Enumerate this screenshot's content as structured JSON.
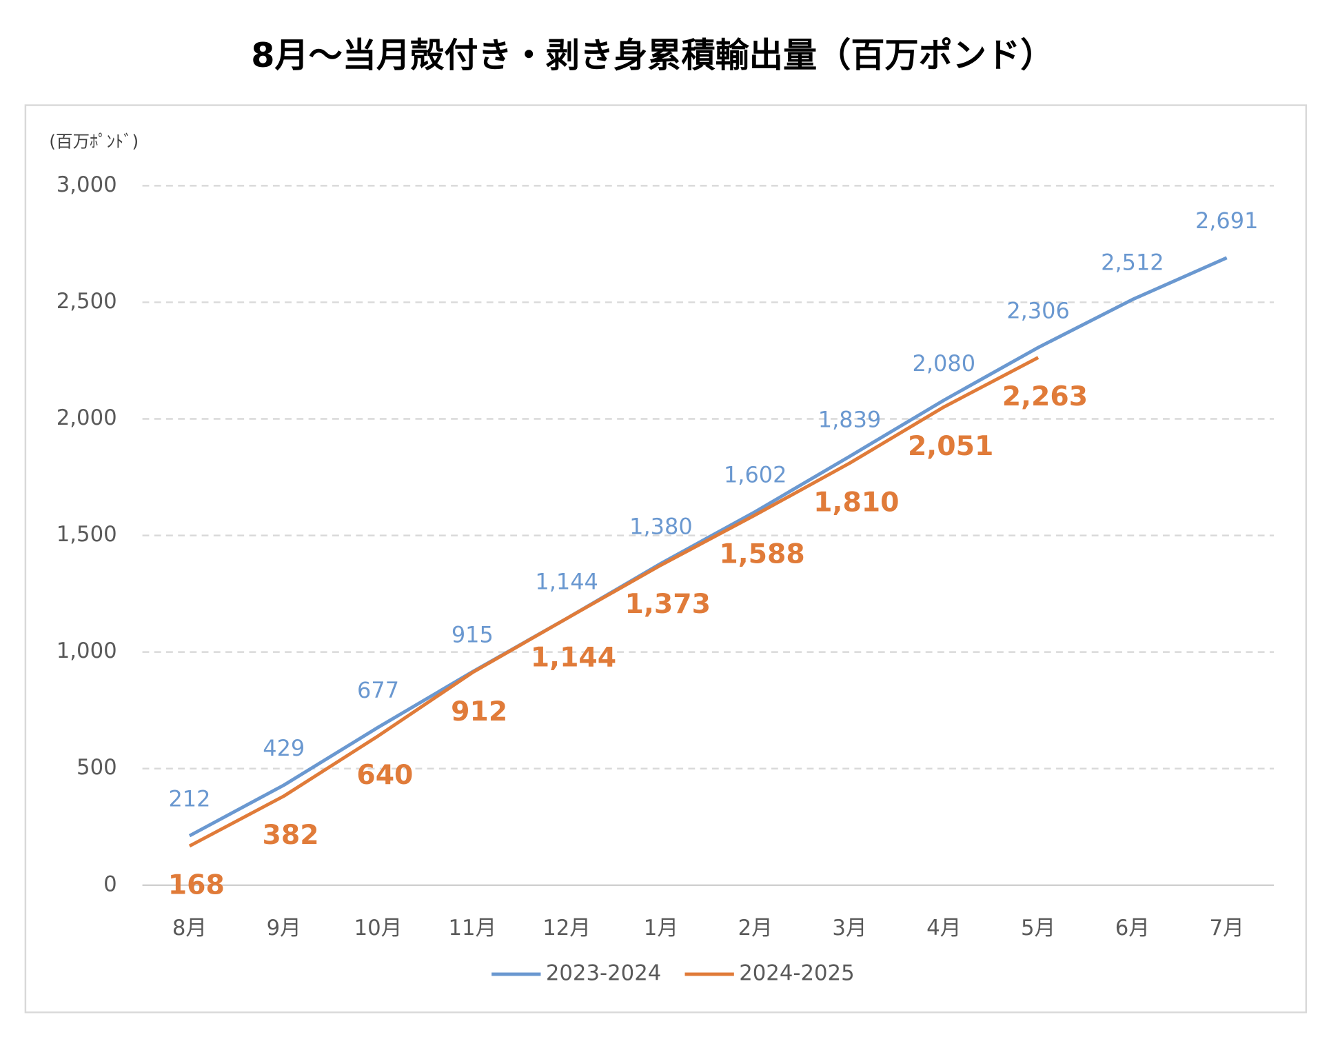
{
  "chart_data": {
    "type": "line",
    "title": "8月～当月殻付き・剥き身累積輸出量（百万ポンド）",
    "y_label": "(百万ﾎﾟﾝﾄﾞ)",
    "categories": [
      "8月",
      "9月",
      "10月",
      "11月",
      "12月",
      "1月",
      "2月",
      "3月",
      "4月",
      "5月",
      "6月",
      "7月"
    ],
    "series": [
      {
        "name": "2023-2024",
        "color": "#6a98d0",
        "values": [
          212,
          429,
          677,
          915,
          1144,
          1380,
          1602,
          1839,
          2080,
          2306,
          2512,
          2691
        ],
        "value_labels": [
          "212",
          "429",
          "677",
          "915",
          "1,144",
          "1,380",
          "1,602",
          "1,839",
          "2,080",
          "2,306",
          "2,512",
          "2,691"
        ]
      },
      {
        "name": "2024-2025",
        "color": "#e07b39",
        "values": [
          168,
          382,
          640,
          912,
          1144,
          1373,
          1588,
          1810,
          2051,
          2263,
          null,
          null
        ],
        "value_labels": [
          "168",
          "382",
          "640",
          "912",
          "1,144",
          "1,373",
          "1,588",
          "1,810",
          "2,051",
          "2,263",
          null,
          null
        ]
      }
    ],
    "ylim": [
      0,
      3000
    ],
    "yticks": [
      0,
      500,
      {
        "value": 1000,
        "label": "1,000"
      },
      {
        "value": 1500,
        "label": "1,500"
      },
      {
        "value": 2000,
        "label": "2,000"
      },
      {
        "value": 2500,
        "label": "2,500"
      },
      {
        "value": 3000,
        "label": "3,000"
      }
    ],
    "grid": true,
    "legend": "bottom"
  }
}
